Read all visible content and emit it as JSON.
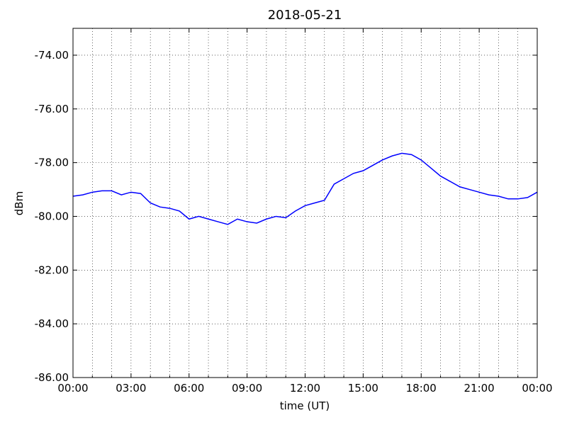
{
  "chart_data": {
    "type": "line",
    "title": "2018-05-21",
    "x_label": "time (UT)",
    "y_label": "dBm",
    "x": [
      0,
      0.5,
      1,
      1.5,
      2,
      2.5,
      3,
      3.5,
      4,
      4.5,
      5,
      5.5,
      6,
      6.5,
      7,
      7.5,
      8,
      8.5,
      9,
      9.5,
      10,
      10.5,
      11,
      11.5,
      12,
      12.5,
      13,
      13.5,
      14,
      14.5,
      15,
      15.5,
      16,
      16.5,
      17,
      17.5,
      18,
      18.5,
      19,
      19.5,
      20,
      20.5,
      21,
      21.5,
      22,
      22.5,
      23,
      23.5,
      24
    ],
    "series": [
      {
        "color": "#0000ff",
        "values": [
          -79.25,
          -79.2,
          -79.1,
          -79.05,
          -79.05,
          -79.2,
          -79.1,
          -79.15,
          -79.5,
          -79.65,
          -79.7,
          -79.8,
          -80.1,
          -80.0,
          -80.1,
          -80.2,
          -80.3,
          -80.1,
          -80.2,
          -80.25,
          -80.1,
          -80.0,
          -80.05,
          -79.8,
          -79.6,
          -79.5,
          -79.4,
          -78.8,
          -78.6,
          -78.4,
          -78.3,
          -78.1,
          -77.9,
          -77.75,
          -77.65,
          -77.7,
          -77.9,
          -78.2,
          -78.5,
          -78.7,
          -78.9,
          -79.0,
          -79.1,
          -79.2,
          -79.25,
          -79.35,
          -79.35,
          -79.3,
          -79.1
        ]
      }
    ],
    "xlim": [
      0,
      24
    ],
    "xticks": [
      {
        "value": 0,
        "label": "00:00"
      },
      {
        "value": 3,
        "label": "03:00"
      },
      {
        "value": 6,
        "label": "06:00"
      },
      {
        "value": 9,
        "label": "09:00"
      },
      {
        "value": 12,
        "label": "12:00"
      },
      {
        "value": 15,
        "label": "15:00"
      },
      {
        "value": 18,
        "label": "18:00"
      },
      {
        "value": 21,
        "label": "21:00"
      },
      {
        "value": 24,
        "label": "00:00"
      }
    ],
    "xminorticks": [
      1,
      2,
      4,
      5,
      7,
      8,
      10,
      11,
      13,
      14,
      16,
      17,
      19,
      20,
      22,
      23
    ],
    "ylim": [
      -86,
      -73
    ],
    "yticks": [
      {
        "value": -86,
        "label": "-86.00"
      },
      {
        "value": -84,
        "label": "-84.00"
      },
      {
        "value": -82,
        "label": "-82.00"
      },
      {
        "value": -80,
        "label": "-80.00"
      },
      {
        "value": -78,
        "label": "-78.00"
      },
      {
        "value": -76,
        "label": "-76.00"
      },
      {
        "value": -74,
        "label": "-74.00"
      }
    ],
    "grid": true
  }
}
